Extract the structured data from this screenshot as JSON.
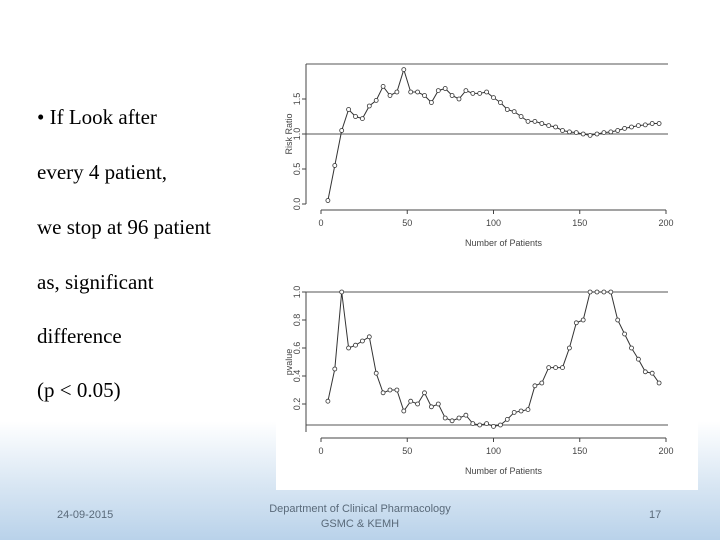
{
  "bullets": [
    "• If Look after",
    "every 4 patient,",
    "we stop at 96 patient",
    "as, significant",
    "difference",
    "(p < 0.05)"
  ],
  "footer": {
    "date": "24-09-2015",
    "department_line1": "Department of Clinical Pharmacology",
    "department_line2": "GSMC & KEMH",
    "page_number": "17"
  },
  "chart_data": [
    {
      "type": "line",
      "title": "",
      "xlabel": "Number of Patients",
      "ylabel": "Risk Ratio",
      "xlim": [
        0,
        200
      ],
      "ylim": [
        0,
        2.0
      ],
      "xticks": [
        "0",
        "50",
        "100",
        "150",
        "200"
      ],
      "yticks": [
        "0.0",
        "0.5",
        "1.0",
        "1.5"
      ],
      "reference_lines": [
        1.0,
        2.0
      ],
      "series": [
        {
          "x": [
            4,
            8,
            12,
            16,
            20,
            24,
            28,
            32,
            36,
            40,
            44,
            48,
            52,
            56,
            60,
            64,
            68,
            72,
            76,
            80,
            84,
            88,
            92,
            96,
            100,
            104,
            108,
            112,
            116,
            120,
            124,
            128,
            132,
            136,
            140,
            144,
            148,
            152,
            156,
            160,
            164,
            168,
            172,
            176,
            180,
            184,
            188,
            192,
            196
          ],
          "values": [
            0.05,
            0.55,
            1.05,
            1.35,
            1.25,
            1.22,
            1.4,
            1.48,
            1.68,
            1.55,
            1.6,
            1.92,
            1.6,
            1.6,
            1.55,
            1.45,
            1.62,
            1.65,
            1.55,
            1.5,
            1.62,
            1.58,
            1.58,
            1.6,
            1.52,
            1.45,
            1.35,
            1.32,
            1.25,
            1.18,
            1.18,
            1.15,
            1.12,
            1.1,
            1.05,
            1.03,
            1.02,
            1.0,
            0.98,
            1.0,
            1.02,
            1.03,
            1.05,
            1.08,
            1.1,
            1.12,
            1.13,
            1.15,
            1.15
          ]
        }
      ]
    },
    {
      "type": "line",
      "title": "",
      "xlabel": "Number of Patients",
      "ylabel": "pvalue",
      "xlim": [
        0,
        200
      ],
      "ylim": [
        0,
        1.0
      ],
      "xticks": [
        "0",
        "50",
        "100",
        "150",
        "200"
      ],
      "yticks": [
        "0.2",
        "0.4",
        "0.6",
        "0.8",
        "1.0"
      ],
      "reference_lines": [
        0.05,
        1.0
      ],
      "series": [
        {
          "x": [
            4,
            8,
            12,
            16,
            20,
            24,
            28,
            32,
            36,
            40,
            44,
            48,
            52,
            56,
            60,
            64,
            68,
            72,
            76,
            80,
            84,
            88,
            92,
            96,
            100,
            104,
            108,
            112,
            116,
            120,
            124,
            128,
            132,
            136,
            140,
            144,
            148,
            152,
            156,
            160,
            164,
            168,
            172,
            176,
            180,
            184,
            188,
            192,
            196
          ],
          "values": [
            0.22,
            0.45,
            1.0,
            0.6,
            0.62,
            0.65,
            0.68,
            0.42,
            0.28,
            0.3,
            0.3,
            0.15,
            0.22,
            0.2,
            0.28,
            0.18,
            0.2,
            0.1,
            0.08,
            0.1,
            0.12,
            0.06,
            0.05,
            0.06,
            0.04,
            0.05,
            0.09,
            0.14,
            0.15,
            0.16,
            0.33,
            0.35,
            0.46,
            0.46,
            0.46,
            0.6,
            0.78,
            0.8,
            1.0,
            1.0,
            1.0,
            1.0,
            0.8,
            0.7,
            0.6,
            0.52,
            0.43,
            0.42,
            0.35
          ]
        }
      ]
    }
  ]
}
